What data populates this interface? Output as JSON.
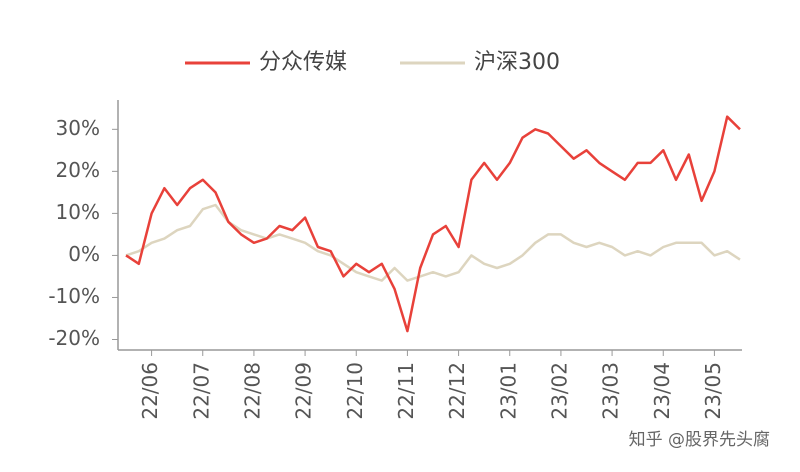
{
  "chart_data": {
    "type": "line",
    "categories": [
      null,
      null,
      "22/06",
      null,
      null,
      null,
      "22/07",
      null,
      null,
      null,
      "22/08",
      null,
      null,
      null,
      "22/09",
      null,
      null,
      null,
      "22/10",
      null,
      null,
      null,
      "22/11",
      null,
      null,
      null,
      "22/12",
      null,
      null,
      null,
      "23/01",
      null,
      null,
      null,
      "23/02",
      null,
      null,
      null,
      "23/03",
      null,
      null,
      null,
      "23/04",
      null,
      null,
      null,
      "23/05",
      null,
      null
    ],
    "series": [
      {
        "name": "分众传媒",
        "color": "#e8413a",
        "values": [
          0,
          -2,
          10,
          16,
          12,
          16,
          18,
          15,
          8,
          5,
          3,
          4,
          7,
          6,
          9,
          2,
          1,
          -5,
          -2,
          -4,
          -2,
          -8,
          -18,
          -3,
          5,
          7,
          2,
          18,
          22,
          18,
          22,
          28,
          30,
          29,
          26,
          23,
          25,
          22,
          20,
          18,
          22,
          22,
          25,
          18,
          24,
          13,
          20,
          33,
          30
        ]
      },
      {
        "name": "沪深300",
        "color": "#ddd5bf",
        "values": [
          0,
          1,
          3,
          4,
          6,
          7,
          11,
          12,
          8,
          6,
          5,
          4,
          5,
          4,
          3,
          1,
          0,
          -2,
          -4,
          -5,
          -6,
          -3,
          -6,
          -5,
          -4,
          -5,
          -4,
          0,
          -2,
          -3,
          -2,
          0,
          3,
          5,
          5,
          3,
          2,
          3,
          2,
          0,
          1,
          0,
          2,
          3,
          3,
          3,
          0,
          1,
          -1
        ]
      }
    ],
    "ylim": [
      -22.5,
      36.5
    ],
    "yticks": [
      {
        "value": -20,
        "label": "-20%"
      },
      {
        "value": -10,
        "label": "-10%"
      },
      {
        "value": 0,
        "label": "0%"
      },
      {
        "value": 10,
        "label": "10%"
      },
      {
        "value": 20,
        "label": "20%"
      },
      {
        "value": 30,
        "label": "30%"
      }
    ],
    "watermark": "知乎 @股界先头腐"
  }
}
